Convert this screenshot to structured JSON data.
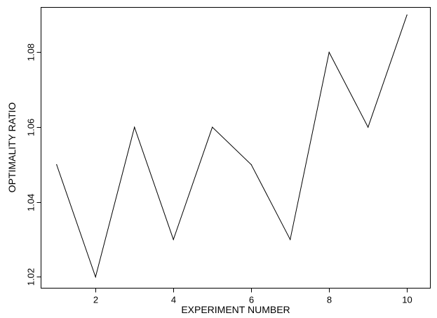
{
  "chart_data": {
    "type": "line",
    "title": "",
    "xlabel": "EXPERIMENT NUMBER",
    "ylabel": "OPTIMALITY RATIO",
    "xlim": [
      0.6,
      10.6
    ],
    "ylim": [
      1.017,
      1.092
    ],
    "x_ticks": [
      2,
      4,
      6,
      8,
      10
    ],
    "y_ticks": [
      1.02,
      1.04,
      1.06,
      1.08
    ],
    "x_tick_labels": [
      "2",
      "4",
      "6",
      "8",
      "10"
    ],
    "y_tick_labels": [
      "1.02",
      "1.04",
      "1.06",
      "1.08"
    ],
    "grid": false,
    "frame": true,
    "series": [
      {
        "x": [
          1,
          2,
          3,
          4,
          5,
          6,
          7,
          8,
          9,
          10
        ],
        "values": [
          1.05,
          1.02,
          1.06,
          1.03,
          1.06,
          1.05,
          1.03,
          1.08,
          1.06,
          1.09
        ],
        "color": "#000000"
      }
    ]
  }
}
